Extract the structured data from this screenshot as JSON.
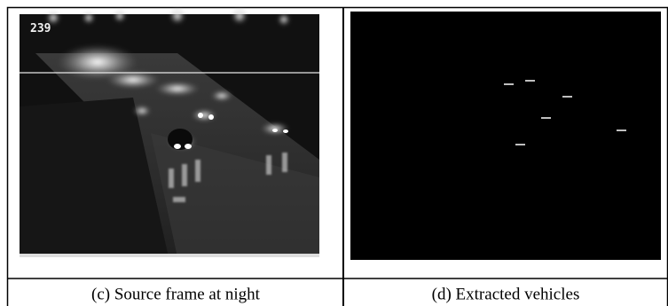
{
  "panels": [
    {
      "caption": "(c) Source frame at night",
      "frame_label": "239"
    },
    {
      "caption": "(d) Extracted vehicles"
    }
  ]
}
